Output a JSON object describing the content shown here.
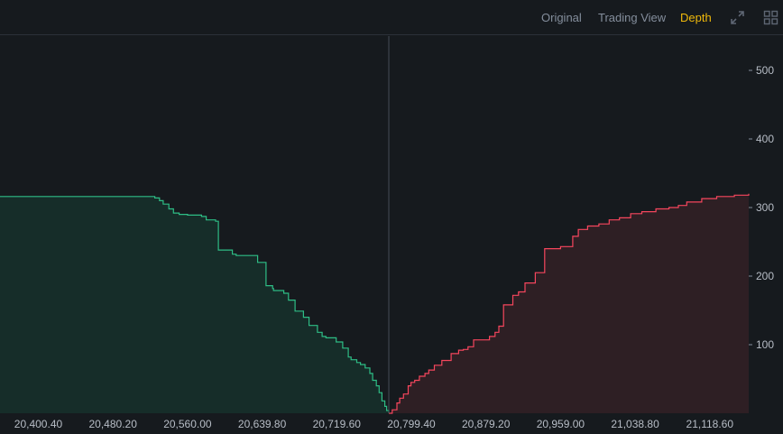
{
  "toolbar": {
    "tabs": [
      {
        "label": "Original",
        "active": false
      },
      {
        "label": "Trading View",
        "active": false
      },
      {
        "label": "Depth",
        "active": true
      }
    ],
    "icons": [
      "expand-icon",
      "grid-layout-icon"
    ]
  },
  "colors": {
    "background": "#161a1e",
    "bid_line": "#2ebd85",
    "bid_fill": "#162d29",
    "ask_line": "#f6465d",
    "ask_fill": "#2e1f24",
    "active_tab": "#f0b90b",
    "text": "#848e9c",
    "mid_line": "#474d57"
  },
  "chart_data": {
    "type": "area",
    "title": "",
    "xlabel": "",
    "ylabel": "",
    "x_ticks": [
      "20,400.40",
      "20,480.20",
      "20,560.00",
      "20,639.80",
      "20,719.60",
      "20,799.40",
      "20,879.20",
      "20,959.00",
      "21,038.80",
      "21,118.60"
    ],
    "y_ticks": [
      100,
      200,
      300,
      400,
      500
    ],
    "xlim": [
      20359.4,
      21160.3
    ],
    "ylim": [
      0,
      550
    ],
    "mid_price": 20775.3,
    "grid": false,
    "series": [
      {
        "name": "",
        "side": "bid",
        "x": [
          20359.4,
          20500.0,
          20525.0,
          20530.0,
          20534.0,
          20540.0,
          20545.0,
          20551.0,
          20560.0,
          20575.0,
          20580.0,
          20590.0,
          20593.0,
          20608.0,
          20612.0,
          20632.0,
          20635.0,
          20644.0,
          20651.0,
          20652.0,
          20663.0,
          20668.0,
          20675.0,
          20684.0,
          20690.0,
          20699.0,
          20704.0,
          20708.0,
          20719.0,
          20726.0,
          20732.0,
          20735.0,
          20741.0,
          20745.0,
          20750.0,
          20755.0,
          20758.0,
          20762.0,
          20765.0,
          20768.0,
          20771.0,
          20773.0,
          20775.3
        ],
        "y": [
          316,
          316,
          314,
          310,
          305,
          298,
          292,
          290,
          289,
          287,
          282,
          280,
          238,
          232,
          230,
          230,
          220,
          186,
          182,
          179,
          175,
          165,
          149,
          140,
          128,
          118,
          112,
          110,
          104,
          95,
          82,
          78,
          74,
          71,
          66,
          58,
          48,
          40,
          30,
          18,
          10,
          4,
          0
        ]
      },
      {
        "name": "",
        "side": "ask",
        "x": [
          20775.3,
          20779.0,
          20784.0,
          20787.0,
          20791.0,
          20796.0,
          20799.0,
          20803.0,
          20808.0,
          20814.0,
          20818.0,
          20824.0,
          20832.0,
          20842.0,
          20850.0,
          20855.0,
          20860.0,
          20866.0,
          20883.0,
          20889.0,
          20893.0,
          20898.0,
          20908.0,
          20914.0,
          20921.0,
          20932.0,
          20942.0,
          20959.0,
          20972.0,
          20978.0,
          20988.0,
          21000.0,
          21011.0,
          21022.0,
          21034.0,
          21046.0,
          21061.0,
          21075.0,
          21085.0,
          21094.0,
          21110.0,
          21126.0,
          21145.0,
          21160.3
        ],
        "y": [
          0,
          5,
          15,
          22,
          28,
          40,
          45,
          48,
          54,
          58,
          63,
          70,
          77,
          87,
          92,
          93,
          97,
          107,
          112,
          118,
          127,
          158,
          172,
          177,
          190,
          205,
          240,
          243,
          258,
          268,
          273,
          276,
          282,
          285,
          291,
          294,
          298,
          300,
          303,
          308,
          313,
          316,
          318,
          320
        ]
      }
    ]
  }
}
